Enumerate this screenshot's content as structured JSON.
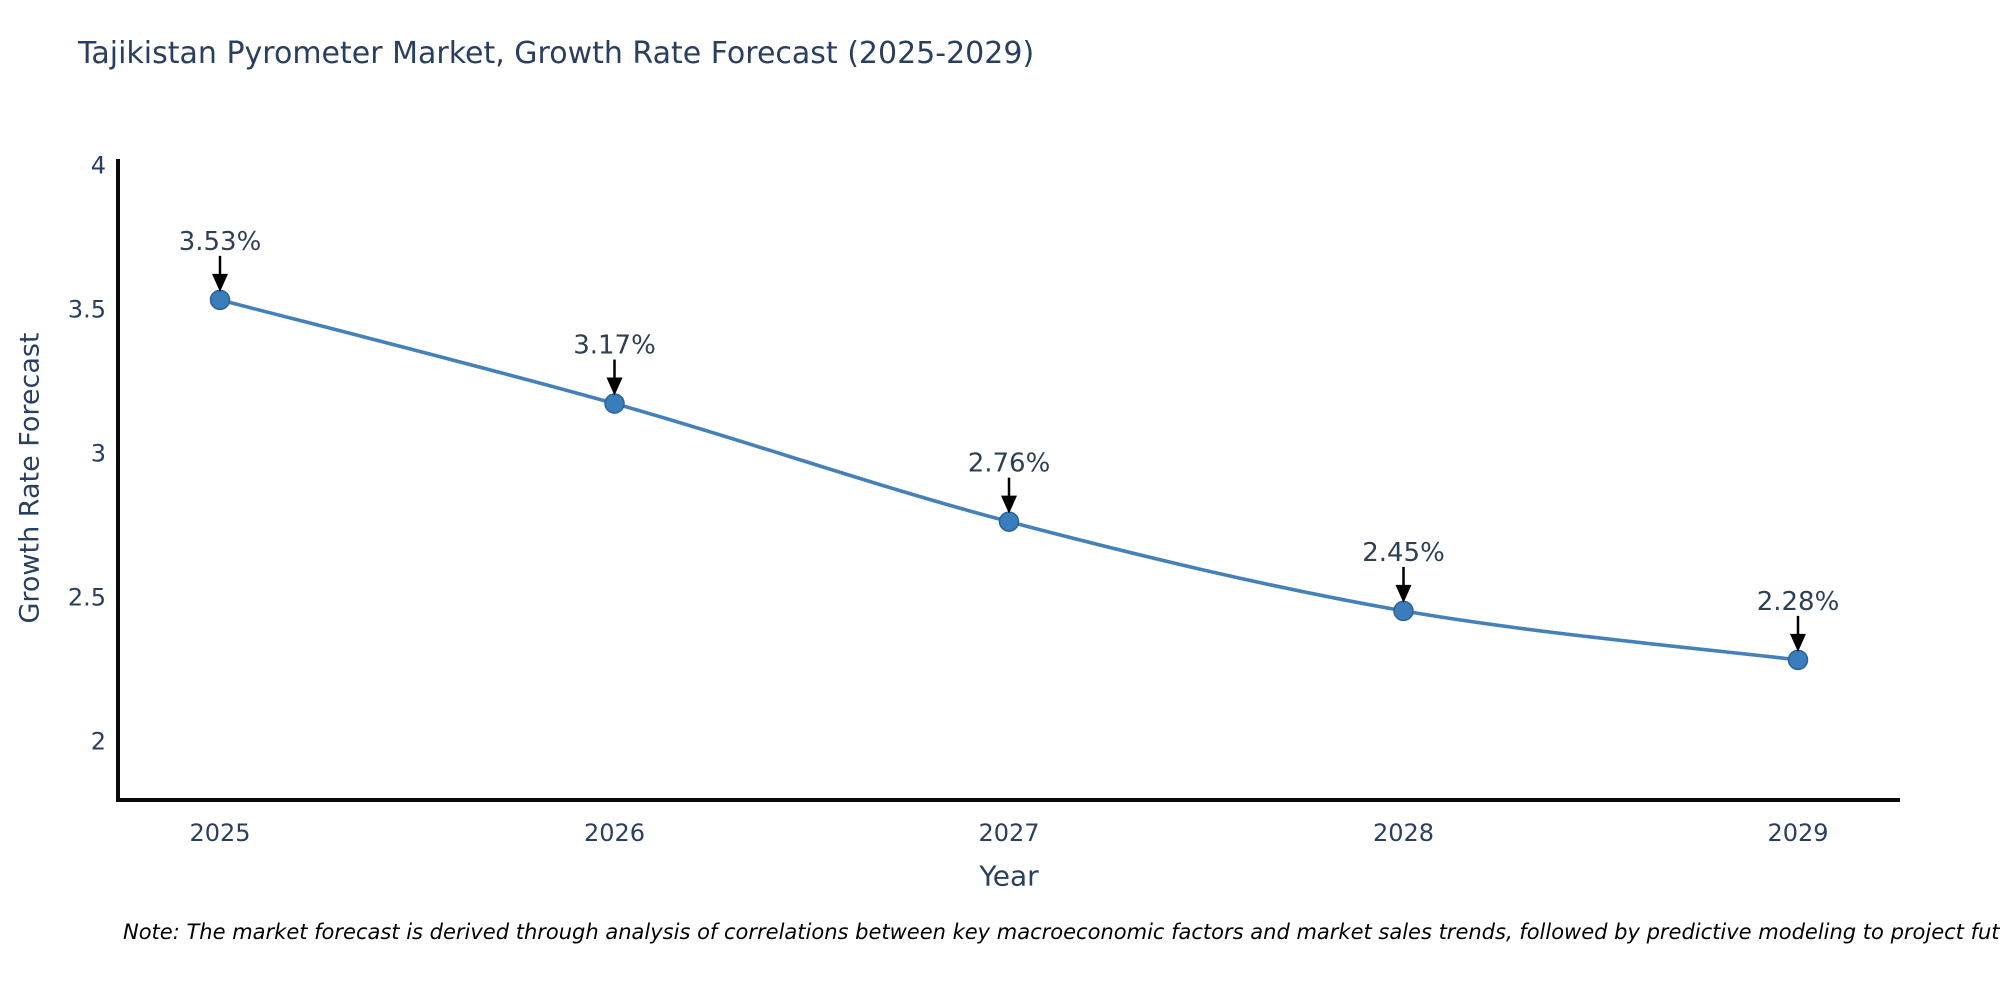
{
  "title": "Tajikistan Pyrometer Market, Growth Rate Forecast (2025-2029)",
  "note": "Note: The market forecast is derived through analysis of correlations between key macroeconomic factors and market sales trends, followed by predictive modeling to project future sales",
  "chart_data": {
    "type": "line",
    "title": "Tajikistan Pyrometer Market, Growth Rate Forecast (2025-2029)",
    "xlabel": "Year",
    "ylabel": "Growth Rate Forecast",
    "categories": [
      "2025",
      "2026",
      "2027",
      "2028",
      "2029"
    ],
    "values": [
      3.53,
      3.17,
      2.76,
      2.45,
      2.28
    ],
    "data_labels": [
      "3.53%",
      "3.17%",
      "2.76%",
      "2.45%",
      "2.28%"
    ],
    "y_ticks": [
      4,
      3.5,
      3,
      2.5,
      2
    ],
    "ylim": [
      1.78,
      4.01
    ],
    "line_shape": "spline",
    "grid": false,
    "legend_position": "none",
    "colors": {
      "line": "#4581b8",
      "marker": "#3a7dbd",
      "marker_edge": "#2d6296",
      "annotation_text": "#2e3f54",
      "annotation_arrow": "#000000",
      "axis_line": "#0a0a0a",
      "tick_text": "#2a3f5f",
      "note_text": "#000000",
      "background": "#ffffff"
    }
  }
}
